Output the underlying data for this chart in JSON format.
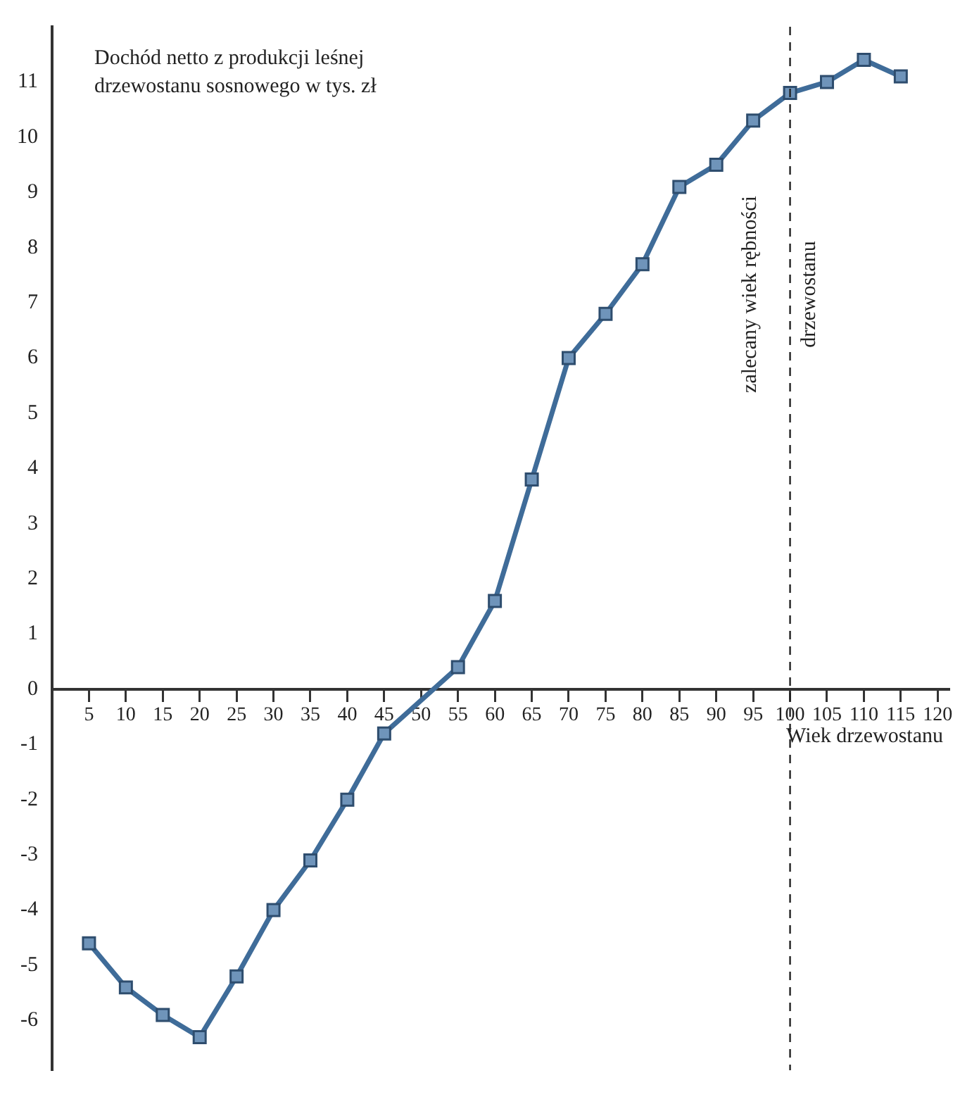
{
  "chart_data": {
    "type": "line",
    "ylabel": "Dochód netto z produkcji leśnej\ndrzewostanu sosnowego w tys. zł",
    "xlabel": "Wiek drzewostanu",
    "x": [
      5,
      10,
      15,
      20,
      25,
      30,
      35,
      40,
      45,
      55,
      60,
      65,
      70,
      75,
      80,
      85,
      90,
      95,
      100,
      105,
      110,
      115
    ],
    "series": [
      {
        "color": "#3f6c99",
        "values": [
          -4.6,
          -5.4,
          -5.9,
          -6.3,
          -5.2,
          -4.0,
          -3.1,
          -2.0,
          -0.8,
          0.4,
          1.6,
          3.8,
          6.0,
          6.8,
          7.7,
          9.1,
          9.5,
          10.3,
          10.8,
          11.0,
          11.4,
          11.1
        ]
      }
    ],
    "xlim": [
      0,
      121.5
    ],
    "xticks": [
      5,
      10,
      15,
      20,
      25,
      30,
      35,
      40,
      45,
      50,
      55,
      60,
      65,
      70,
      75,
      80,
      85,
      90,
      95,
      100,
      105,
      110,
      115,
      120
    ],
    "ylim": [
      -6.9,
      12
    ],
    "yticks": [
      -6,
      -5,
      -4,
      -3,
      -2,
      -1,
      0,
      1,
      2,
      3,
      4,
      5,
      6,
      7,
      8,
      9,
      10,
      11
    ],
    "ref_lines": [
      {
        "axis": "x",
        "value": 100,
        "label": "zalecany wiek rębności\ndrzewostanu",
        "line_style": "dashed",
        "color": "#222222"
      }
    ],
    "marker": "square",
    "line_style": "solid",
    "grid": false,
    "legend": false
  }
}
